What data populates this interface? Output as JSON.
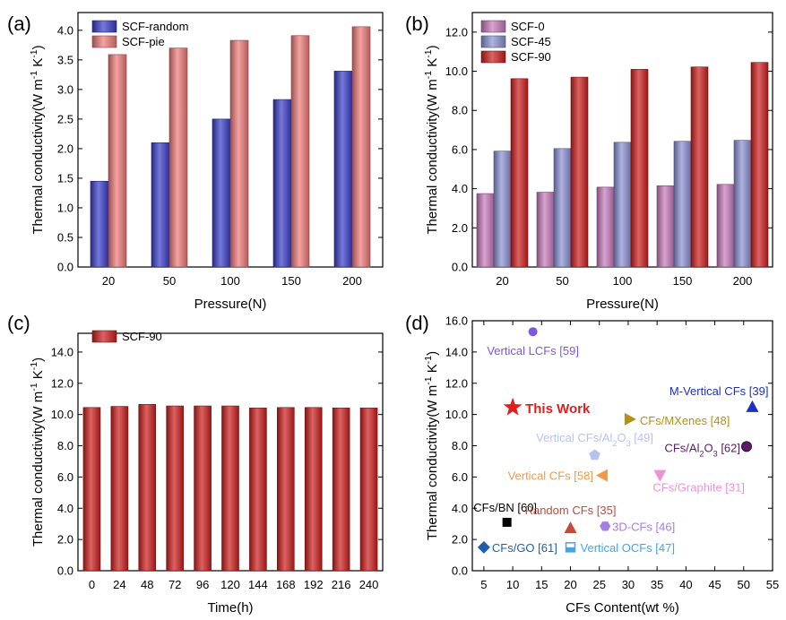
{
  "colors": {
    "blue_bar": "#3b3fc9",
    "red_bar": "#d8433e",
    "pink_red_bar": "#ef7c7a",
    "pink_bar": "#c97bbd",
    "lavender_bar": "#8d93d6",
    "dark_red_bar": "#cf1f1f"
  },
  "chart_data": [
    {
      "panel": "(a)",
      "type": "bar",
      "title": "",
      "xlabel": "Pressure(N)",
      "ylabel": "Thermal conductivity(W m⁻¹ K⁻¹)",
      "ylim": [
        0,
        4.3
      ],
      "yticks": [
        "0.0",
        "0.5",
        "1.0",
        "1.5",
        "2.0",
        "2.5",
        "3.0",
        "3.5",
        "4.0"
      ],
      "categories": [
        "20",
        "50",
        "100",
        "150",
        "200"
      ],
      "legend_position": "top-left",
      "series": [
        {
          "name": "SCF-random",
          "color": "#3b3fc9",
          "values": [
            1.45,
            2.1,
            2.5,
            2.83,
            3.31
          ]
        },
        {
          "name": "SCF-pie",
          "color": "#ef7c7a",
          "values": [
            3.59,
            3.7,
            3.83,
            3.91,
            4.06
          ]
        }
      ]
    },
    {
      "panel": "(b)",
      "type": "bar",
      "title": "",
      "xlabel": "Pressure(N)",
      "ylabel": "Thermal conductivity(W m⁻¹ K⁻¹)",
      "ylim": [
        0,
        13.0
      ],
      "yticks": [
        "0.0",
        "2.0",
        "4.0",
        "6.0",
        "8.0",
        "10.0",
        "12.0"
      ],
      "categories": [
        "20",
        "50",
        "100",
        "150",
        "200"
      ],
      "legend_position": "top-left",
      "series": [
        {
          "name": "SCF-0",
          "color": "#c97bbd",
          "values": [
            3.75,
            3.82,
            4.08,
            4.15,
            4.22
          ]
        },
        {
          "name": "SCF-45",
          "color": "#8d93d6",
          "values": [
            5.92,
            6.05,
            6.37,
            6.42,
            6.47
          ]
        },
        {
          "name": "SCF-90",
          "color": "#cf1f1f",
          "values": [
            9.62,
            9.7,
            10.1,
            10.22,
            10.45
          ]
        }
      ]
    },
    {
      "panel": "(c)",
      "type": "bar",
      "title": "",
      "xlabel": "Time(h)",
      "ylabel": "Thermal conductivity(W m⁻¹ K⁻¹)",
      "ylim": [
        0,
        15.2
      ],
      "yticks": [
        "0.0",
        "2.0",
        "4.0",
        "6.0",
        "8.0",
        "10.0",
        "12.0",
        "14.0"
      ],
      "categories": [
        "0",
        "24",
        "48",
        "72",
        "96",
        "120",
        "144",
        "168",
        "192",
        "216",
        "240"
      ],
      "legend_position": "top-left",
      "series": [
        {
          "name": "SCF-90",
          "color": "#cf1f1f",
          "values": [
            10.45,
            10.52,
            10.65,
            10.55,
            10.55,
            10.55,
            10.42,
            10.45,
            10.45,
            10.42,
            10.42
          ]
        }
      ]
    },
    {
      "panel": "(d)",
      "type": "scatter",
      "title": "",
      "xlabel": "CFs Content(wt %)",
      "ylabel": "Thermal conductivity(W m⁻¹ K⁻¹)",
      "xlim": [
        3,
        55
      ],
      "ylim": [
        0,
        16
      ],
      "xticks": [
        "5",
        "10",
        "15",
        "20",
        "25",
        "30",
        "35",
        "40",
        "45",
        "50",
        "55"
      ],
      "yticks": [
        "0.0",
        "2.0",
        "4.0",
        "6.0",
        "8.0",
        "10.0",
        "12.0",
        "14.0",
        "16.0"
      ],
      "points": [
        {
          "label": "Vertical LCFs [59]",
          "x": 13.5,
          "y": 15.3,
          "color": "#7d57e0",
          "marker": "circle"
        },
        {
          "label": "M-Vertical CFs [39]",
          "x": 51.5,
          "y": 10.5,
          "color": "#1f2fbf",
          "marker": "triangle-up"
        },
        {
          "label": "This Work",
          "x": 10.0,
          "y": 10.45,
          "color": "#e01e1e",
          "marker": "star"
        },
        {
          "label": "CFs/MXenes [48]",
          "x": 30.3,
          "y": 9.7,
          "color": "#b58f16",
          "marker": "triangle-right"
        },
        {
          "label": "CFs/Al₂O₃ [62]",
          "x": 50.5,
          "y": 7.95,
          "color": "#5c1a66",
          "marker": "sphere"
        },
        {
          "label": "Vertical CFs/Al₂O₃ [49]",
          "x": 24.2,
          "y": 7.4,
          "color": "#b7c3ef",
          "marker": "pentagon"
        },
        {
          "label": "Vertical CFs [58]",
          "x": 25.5,
          "y": 6.1,
          "color": "#f09a44",
          "marker": "triangle-left"
        },
        {
          "label": "CFs/Graphite [31]",
          "x": 35.5,
          "y": 6.1,
          "color": "#ee92d4",
          "marker": "triangle-down"
        },
        {
          "label": "CFs/BN [60]",
          "x": 9.0,
          "y": 3.1,
          "color": "#000000",
          "marker": "square"
        },
        {
          "label": "Random CFs [35]",
          "x": 20.0,
          "y": 2.75,
          "color": "#c4493e",
          "marker": "triangle-up"
        },
        {
          "label": "3D-CFs [46]",
          "x": 26.0,
          "y": 2.85,
          "color": "#a47ee8",
          "marker": "hexagon"
        },
        {
          "label": "CFs/GO [61]",
          "x": 5.0,
          "y": 1.5,
          "color": "#1f5fae",
          "marker": "diamond"
        },
        {
          "label": "Vertical OCFs [47]",
          "x": 20.0,
          "y": 1.5,
          "color": "#43a6e6",
          "marker": "half-square"
        }
      ]
    }
  ]
}
